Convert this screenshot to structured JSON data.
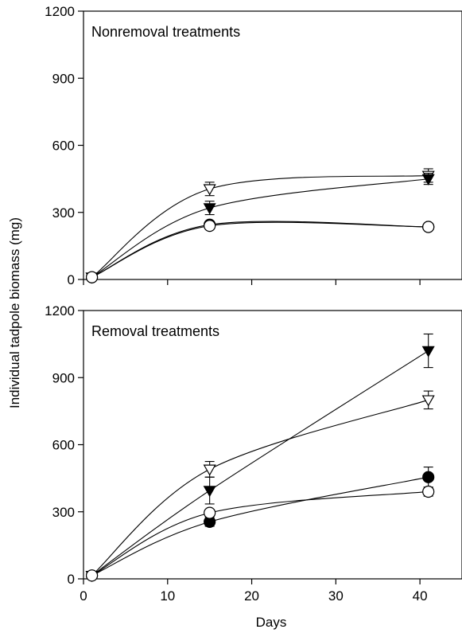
{
  "chart_data": {
    "type": "line",
    "xlabel": "Days",
    "ylabel": "Individual tadpole biomass (mg)",
    "xlim": [
      0,
      45
    ],
    "xticks": [
      0,
      10,
      20,
      30,
      40
    ],
    "ylim": [
      0,
      1200
    ],
    "yticks": [
      0,
      300,
      600,
      900,
      1200
    ],
    "panels": [
      {
        "title": "Nonremoval treatments",
        "series": [
          {
            "marker": "open-triangle-down",
            "x": [
              1,
              15,
              41
            ],
            "y": [
              10,
              405,
              465
            ],
            "error": [
              0,
              30,
              30
            ]
          },
          {
            "marker": "filled-triangle-down",
            "x": [
              1,
              15,
              41
            ],
            "y": [
              10,
              320,
              450
            ],
            "error": [
              0,
              30,
              25
            ]
          },
          {
            "marker": "filled-circle",
            "x": [
              1,
              15,
              41
            ],
            "y": [
              10,
              245,
              235
            ],
            "error": [
              0,
              15,
              10
            ]
          },
          {
            "marker": "open-circle",
            "x": [
              1,
              15,
              41
            ],
            "y": [
              10,
              240,
              235
            ],
            "error": [
              0,
              10,
              10
            ]
          }
        ]
      },
      {
        "title": "Removal treatments",
        "series": [
          {
            "marker": "filled-triangle-down",
            "x": [
              1,
              15,
              41
            ],
            "y": [
              15,
              395,
              1020
            ],
            "error": [
              0,
              60,
              75
            ]
          },
          {
            "marker": "open-triangle-down",
            "x": [
              1,
              15,
              41
            ],
            "y": [
              15,
              490,
              800
            ],
            "error": [
              0,
              35,
              40
            ]
          },
          {
            "marker": "filled-circle",
            "x": [
              1,
              15,
              41
            ],
            "y": [
              15,
              255,
              455
            ],
            "error": [
              0,
              20,
              45
            ]
          },
          {
            "marker": "open-circle",
            "x": [
              1,
              15,
              41
            ],
            "y": [
              15,
              295,
              390
            ],
            "error": [
              0,
              15,
              20
            ]
          }
        ]
      }
    ]
  }
}
